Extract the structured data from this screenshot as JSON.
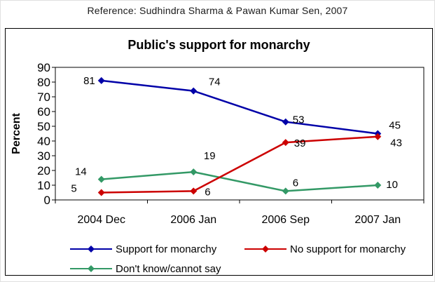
{
  "reference": "Reference: Sudhindra Sharma & Pawan Kumar Sen, 2007",
  "chart_data": {
    "type": "line",
    "title": "Public's support for monarchy",
    "xlabel": "",
    "ylabel": "Percent",
    "categories": [
      "2004 Dec",
      "2006 Jan",
      "2006 Sep",
      "2007 Jan"
    ],
    "series": [
      {
        "name": "Support for monarchy",
        "color": "#0000A8",
        "values": [
          81,
          74,
          53,
          45
        ]
      },
      {
        "name": "No support for monarchy",
        "color": "#CC0000",
        "values": [
          5,
          6,
          39,
          43
        ]
      },
      {
        "name": "Don't know/cannot say",
        "color": "#339966",
        "values": [
          14,
          19,
          6,
          10
        ]
      }
    ],
    "ylim": [
      0,
      90
    ],
    "ytick_step": 10,
    "grid": false,
    "data_labels": true,
    "marker": "diamond",
    "legend_position": "bottom"
  }
}
